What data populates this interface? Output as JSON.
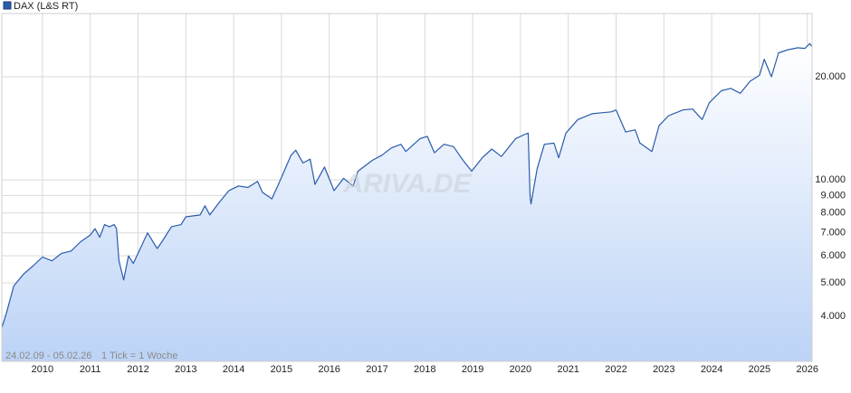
{
  "chart_data": {
    "type": "line",
    "legend": "DAX (L&S RT)",
    "date_range": "24.02.09 - 05.02.26",
    "tick_note": "1 Tick = 1 Woche",
    "watermark": "ARIVA.DE",
    "log_scale": true,
    "grid": true,
    "xlim": [
      2009.15,
      2026.1
    ],
    "xticks": [
      2010,
      2011,
      2012,
      2013,
      2014,
      2015,
      2016,
      2017,
      2018,
      2019,
      2020,
      2021,
      2022,
      2023,
      2024,
      2025,
      2026
    ],
    "ylim": [
      2950,
      30600
    ],
    "yticks": [
      {
        "value": 4000,
        "label": "4.000"
      },
      {
        "value": 5000,
        "label": "5.000"
      },
      {
        "value": 6000,
        "label": "6.000"
      },
      {
        "value": 7000,
        "label": "7.000"
      },
      {
        "value": 8000,
        "label": "8.000"
      },
      {
        "value": 9000,
        "label": "9.000"
      },
      {
        "value": 10000,
        "label": "10.000"
      },
      {
        "value": 20000,
        "label": "20.000"
      }
    ],
    "series": [
      {
        "name": "DAX (L&S RT)",
        "color": "#2a5caa",
        "x": [
          2009.15,
          2009.25,
          2009.4,
          2009.6,
          2009.8,
          2010.0,
          2010.2,
          2010.4,
          2010.6,
          2010.8,
          2011.0,
          2011.1,
          2011.2,
          2011.3,
          2011.4,
          2011.5,
          2011.55,
          2011.6,
          2011.7,
          2011.8,
          2011.9,
          2012.0,
          2012.2,
          2012.4,
          2012.5,
          2012.7,
          2012.9,
          2013.0,
          2013.3,
          2013.4,
          2013.5,
          2013.7,
          2013.9,
          2014.1,
          2014.3,
          2014.5,
          2014.6,
          2014.8,
          2014.95,
          2015.2,
          2015.3,
          2015.45,
          2015.6,
          2015.7,
          2015.9,
          2016.1,
          2016.3,
          2016.5,
          2016.6,
          2016.9,
          2017.1,
          2017.3,
          2017.5,
          2017.6,
          2017.9,
          2018.05,
          2018.2,
          2018.4,
          2018.6,
          2018.8,
          2018.98,
          2019.2,
          2019.4,
          2019.6,
          2019.9,
          2020.1,
          2020.16,
          2020.2,
          2020.22,
          2020.35,
          2020.5,
          2020.7,
          2020.8,
          2020.95,
          2021.2,
          2021.5,
          2021.7,
          2021.9,
          2022.0,
          2022.2,
          2022.4,
          2022.5,
          2022.75,
          2022.9,
          2023.1,
          2023.4,
          2023.6,
          2023.8,
          2023.95,
          2024.2,
          2024.4,
          2024.6,
          2024.8,
          2025.0,
          2025.1,
          2025.25,
          2025.4,
          2025.6,
          2025.8,
          2025.95,
          2026.05,
          2026.1
        ],
        "values": [
          3700,
          4100,
          4900,
          5300,
          5600,
          5950,
          5800,
          6100,
          6200,
          6600,
          6900,
          7200,
          6800,
          7400,
          7300,
          7400,
          7200,
          5800,
          5100,
          6000,
          5700,
          6100,
          7000,
          6300,
          6600,
          7300,
          7400,
          7800,
          7900,
          8400,
          7900,
          8600,
          9300,
          9600,
          9500,
          9900,
          9200,
          8800,
          9800,
          11800,
          12200,
          11200,
          11500,
          9700,
          10900,
          9300,
          10100,
          9600,
          10600,
          11400,
          11800,
          12400,
          12700,
          12100,
          13200,
          13400,
          12000,
          12700,
          12500,
          11400,
          10600,
          11600,
          12300,
          11700,
          13200,
          13600,
          13700,
          9000,
          8500,
          10800,
          12700,
          12800,
          11600,
          13700,
          15000,
          15600,
          15700,
          15800,
          16000,
          13800,
          14000,
          12800,
          12100,
          14400,
          15400,
          16000,
          16100,
          15000,
          16800,
          18200,
          18500,
          17900,
          19400,
          20200,
          22500,
          20000,
          23500,
          24000,
          24300,
          24200,
          25000,
          24500
        ]
      }
    ]
  }
}
